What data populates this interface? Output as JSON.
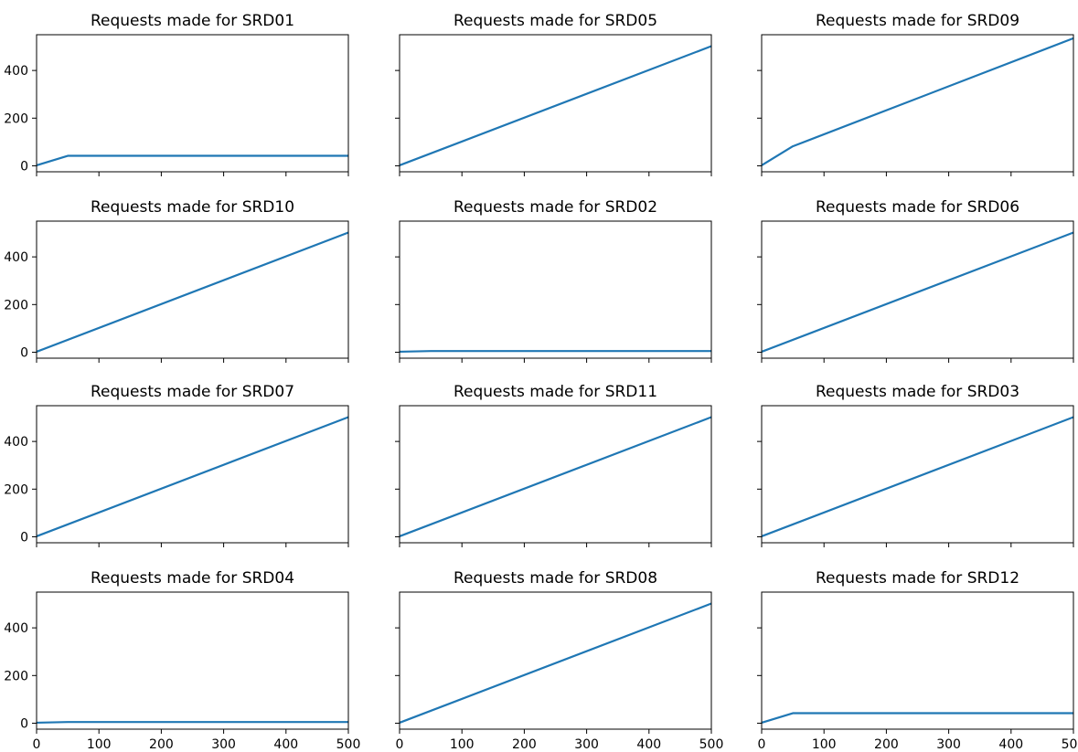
{
  "figure": {
    "background": "#ffffff",
    "line_color": "#1f77b4",
    "sharey": true,
    "sharex": true,
    "grid": false
  },
  "chart_data": [
    {
      "type": "line",
      "title": "Requests made for SRD01",
      "x": [
        0,
        50,
        500
      ],
      "y": [
        2,
        42,
        42
      ],
      "xlim": [
        0,
        500
      ],
      "ylim": [
        -25,
        550
      ],
      "yticks": [
        0,
        200,
        400
      ],
      "ytick_labels": [
        "0",
        "200",
        "400"
      ],
      "xticks": [
        0,
        100,
        200,
        300,
        400,
        500
      ],
      "xtick_labels": [],
      "show_yticklabels": true
    },
    {
      "type": "line",
      "title": "Requests made for SRD05",
      "x": [
        0,
        500
      ],
      "y": [
        2,
        502
      ],
      "xlim": [
        0,
        500
      ],
      "ylim": [
        -25,
        550
      ],
      "yticks": [
        0,
        200,
        400
      ],
      "ytick_labels": [],
      "xticks": [
        0,
        100,
        200,
        300,
        400,
        500
      ],
      "xtick_labels": [],
      "show_yticklabels": false
    },
    {
      "type": "line",
      "title": "Requests made for SRD09",
      "x": [
        0,
        50,
        500
      ],
      "y": [
        2,
        82,
        535
      ],
      "xlim": [
        0,
        500
      ],
      "ylim": [
        -25,
        550
      ],
      "yticks": [
        0,
        200,
        400
      ],
      "ytick_labels": [],
      "xticks": [
        0,
        100,
        200,
        300,
        400,
        500
      ],
      "xtick_labels": [],
      "show_yticklabels": false
    },
    {
      "type": "line",
      "title": "Requests made for SRD10",
      "x": [
        0,
        500
      ],
      "y": [
        2,
        502
      ],
      "xlim": [
        0,
        500
      ],
      "ylim": [
        -25,
        550
      ],
      "yticks": [
        0,
        200,
        400
      ],
      "ytick_labels": [
        "0",
        "200",
        "400"
      ],
      "xticks": [
        0,
        100,
        200,
        300,
        400,
        500
      ],
      "xtick_labels": [],
      "show_yticklabels": true
    },
    {
      "type": "line",
      "title": "Requests made for SRD02",
      "x": [
        0,
        50,
        500
      ],
      "y": [
        2,
        5,
        5
      ],
      "xlim": [
        0,
        500
      ],
      "ylim": [
        -25,
        550
      ],
      "yticks": [
        0,
        200,
        400
      ],
      "ytick_labels": [],
      "xticks": [
        0,
        100,
        200,
        300,
        400,
        500
      ],
      "xtick_labels": [],
      "show_yticklabels": false
    },
    {
      "type": "line",
      "title": "Requests made for SRD06",
      "x": [
        0,
        500
      ],
      "y": [
        2,
        502
      ],
      "xlim": [
        0,
        500
      ],
      "ylim": [
        -25,
        550
      ],
      "yticks": [
        0,
        200,
        400
      ],
      "ytick_labels": [],
      "xticks": [
        0,
        100,
        200,
        300,
        400,
        500
      ],
      "xtick_labels": [],
      "show_yticklabels": false
    },
    {
      "type": "line",
      "title": "Requests made for SRD07",
      "x": [
        0,
        500
      ],
      "y": [
        2,
        502
      ],
      "xlim": [
        0,
        500
      ],
      "ylim": [
        -25,
        550
      ],
      "yticks": [
        0,
        200,
        400
      ],
      "ytick_labels": [
        "0",
        "200",
        "400"
      ],
      "xticks": [
        0,
        100,
        200,
        300,
        400,
        500
      ],
      "xtick_labels": [],
      "show_yticklabels": true
    },
    {
      "type": "line",
      "title": "Requests made for SRD11",
      "x": [
        0,
        500
      ],
      "y": [
        2,
        502
      ],
      "xlim": [
        0,
        500
      ],
      "ylim": [
        -25,
        550
      ],
      "yticks": [
        0,
        200,
        400
      ],
      "ytick_labels": [],
      "xticks": [
        0,
        100,
        200,
        300,
        400,
        500
      ],
      "xtick_labels": [],
      "show_yticklabels": false
    },
    {
      "type": "line",
      "title": "Requests made for SRD03",
      "x": [
        0,
        500
      ],
      "y": [
        2,
        502
      ],
      "xlim": [
        0,
        500
      ],
      "ylim": [
        -25,
        550
      ],
      "yticks": [
        0,
        200,
        400
      ],
      "ytick_labels": [],
      "xticks": [
        0,
        100,
        200,
        300,
        400,
        500
      ],
      "xtick_labels": [],
      "show_yticklabels": false
    },
    {
      "type": "line",
      "title": "Requests made for SRD04",
      "x": [
        0,
        50,
        500
      ],
      "y": [
        2,
        5,
        5
      ],
      "xlim": [
        0,
        500
      ],
      "ylim": [
        -25,
        550
      ],
      "yticks": [
        0,
        200,
        400
      ],
      "ytick_labels": [
        "0",
        "200",
        "400"
      ],
      "xticks": [
        0,
        100,
        200,
        300,
        400,
        500
      ],
      "xtick_labels": [
        "0",
        "100",
        "200",
        "300",
        "400",
        "500"
      ],
      "show_yticklabels": true
    },
    {
      "type": "line",
      "title": "Requests made for SRD08",
      "x": [
        0,
        500
      ],
      "y": [
        2,
        502
      ],
      "xlim": [
        0,
        500
      ],
      "ylim": [
        -25,
        550
      ],
      "yticks": [
        0,
        200,
        400
      ],
      "ytick_labels": [],
      "xticks": [
        0,
        100,
        200,
        300,
        400,
        500
      ],
      "xtick_labels": [
        "0",
        "100",
        "200",
        "300",
        "400",
        "500"
      ],
      "show_yticklabels": false
    },
    {
      "type": "line",
      "title": "Requests made for SRD12",
      "x": [
        0,
        50,
        500
      ],
      "y": [
        2,
        42,
        42
      ],
      "xlim": [
        0,
        500
      ],
      "ylim": [
        -25,
        550
      ],
      "yticks": [
        0,
        200,
        400
      ],
      "ytick_labels": [],
      "xticks": [
        0,
        100,
        200,
        300,
        400,
        500
      ],
      "xtick_labels": [
        "0",
        "100",
        "200",
        "300",
        "400",
        "500"
      ],
      "show_yticklabels": false
    }
  ]
}
